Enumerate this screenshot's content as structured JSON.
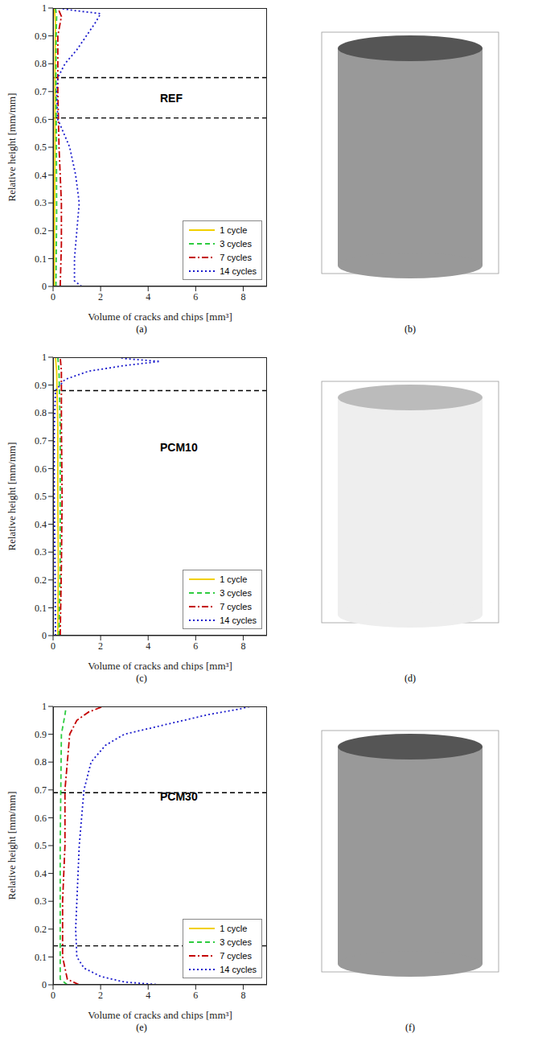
{
  "chart_data": [
    {
      "type": "line",
      "label": "(a)",
      "annotation": "REF",
      "x_label": "Volume of cracks and chips [mm³]",
      "y_label": "Relative height [mm/mm]",
      "xlim": [
        0,
        9
      ],
      "ylim": [
        0,
        1
      ],
      "xticks": [
        0,
        2,
        4,
        6,
        8
      ],
      "yticks": [
        0,
        0.1,
        0.2,
        0.3,
        0.4,
        0.5,
        0.6,
        0.7,
        0.8,
        0.9,
        1
      ],
      "legend": "lower right",
      "hlines": [
        0.75,
        0.605
      ],
      "series": [
        {
          "name": "1 cycle",
          "color": "#f2d000",
          "line_style": "solid",
          "x": [
            0.05,
            0.06,
            0.08,
            0.08,
            0.1,
            0.05
          ],
          "y": [
            0,
            0.25,
            0.5,
            0.75,
            0.95,
            1
          ]
        },
        {
          "name": "3 cycles",
          "color": "#2ecc40",
          "line_style": "dashed",
          "x": [
            0.12,
            0.15,
            0.14,
            0.12,
            0.13,
            0.15,
            0.1
          ],
          "y": [
            0,
            0.25,
            0.5,
            0.75,
            0.9,
            0.97,
            1
          ]
        },
        {
          "name": "7 cycles",
          "color": "#c40000",
          "line_style": "dashdot",
          "x": [
            0.3,
            0.35,
            0.35,
            0.25,
            0.2,
            0.2,
            0.35,
            0.2
          ],
          "y": [
            0,
            0.15,
            0.3,
            0.5,
            0.7,
            0.9,
            0.97,
            1
          ]
        },
        {
          "name": "14 cycles",
          "color": "#1a1acc",
          "line_style": "dotted",
          "x": [
            1.2,
            0.9,
            0.9,
            1.0,
            1.1,
            0.95,
            0.7,
            0.2,
            0.15,
            0.2,
            0.5,
            1.0,
            1.4,
            1.8,
            2.0,
            1.0,
            0.2
          ],
          "y": [
            0,
            0.02,
            0.1,
            0.2,
            0.3,
            0.4,
            0.5,
            0.6,
            0.7,
            0.75,
            0.8,
            0.85,
            0.9,
            0.95,
            0.98,
            0.99,
            1
          ]
        }
      ]
    },
    {
      "type": "line",
      "label": "(c)",
      "annotation": "PCM10",
      "x_label": "Volume of cracks and chips [mm³]",
      "y_label": "Relative height [mm/mm]",
      "xlim": [
        0,
        9
      ],
      "ylim": [
        0,
        1
      ],
      "xticks": [
        0,
        2,
        4,
        6,
        8
      ],
      "yticks": [
        0,
        0.1,
        0.2,
        0.3,
        0.4,
        0.5,
        0.6,
        0.7,
        0.8,
        0.9,
        1
      ],
      "legend": "lower right",
      "hlines": [
        0.88
      ],
      "series": [
        {
          "name": "1 cycle",
          "color": "#f2d000",
          "line_style": "solid",
          "x": [
            0.2,
            0.22,
            0.2,
            0.2,
            0.15,
            0.1
          ],
          "y": [
            0,
            0.25,
            0.5,
            0.75,
            0.95,
            1
          ]
        },
        {
          "name": "3 cycles",
          "color": "#2ecc40",
          "line_style": "dashed",
          "x": [
            0.25,
            0.3,
            0.3,
            0.3,
            0.25,
            0.2
          ],
          "y": [
            0,
            0.25,
            0.5,
            0.75,
            0.95,
            1
          ]
        },
        {
          "name": "7 cycles",
          "color": "#c40000",
          "line_style": "dashdot",
          "x": [
            0.3,
            0.35,
            0.38,
            0.35,
            0.35,
            0.3
          ],
          "y": [
            0,
            0.25,
            0.5,
            0.75,
            0.95,
            1
          ]
        },
        {
          "name": "14 cycles",
          "color": "#1a1acc",
          "line_style": "dotted",
          "x": [
            0.1,
            0.08,
            0.05,
            0.05,
            0.1,
            0.5,
            1.5,
            3.0,
            4.5,
            3.0,
            2.8
          ],
          "y": [
            0,
            0.25,
            0.5,
            0.75,
            0.88,
            0.92,
            0.95,
            0.97,
            0.985,
            0.995,
            1
          ]
        }
      ]
    },
    {
      "type": "line",
      "label": "(e)",
      "annotation": "PCM30",
      "x_label": "Volume of cracks and chips [mm³]",
      "y_label": "Relative height [mm/mm]",
      "xlim": [
        0,
        9
      ],
      "ylim": [
        0,
        1
      ],
      "xticks": [
        0,
        2,
        4,
        6,
        8
      ],
      "yticks": [
        0,
        0.1,
        0.2,
        0.3,
        0.4,
        0.5,
        0.6,
        0.7,
        0.8,
        0.9,
        1
      ],
      "legend": "lower right",
      "hlines": [
        0.69,
        0.14
      ],
      "series": [
        {
          "name": "1 cycle",
          "color": "#f2d000",
          "line_style": "solid",
          "x": [
            0,
            0
          ],
          "y": [
            0,
            1
          ]
        },
        {
          "name": "3 cycles",
          "color": "#2ecc40",
          "line_style": "dashed",
          "x": [
            0.6,
            0.3,
            0.3,
            0.3,
            0.35,
            0.5,
            0.55
          ],
          "y": [
            0,
            0.02,
            0.1,
            0.5,
            0.9,
            0.97,
            1
          ]
        },
        {
          "name": "7 cycles",
          "color": "#c40000",
          "line_style": "dashdot",
          "x": [
            1.1,
            0.6,
            0.4,
            0.4,
            0.5,
            0.5,
            0.7,
            1.0,
            1.5,
            2.1
          ],
          "y": [
            0,
            0.02,
            0.1,
            0.3,
            0.5,
            0.7,
            0.9,
            0.95,
            0.98,
            1
          ]
        },
        {
          "name": "14 cycles",
          "color": "#1a1acc",
          "line_style": "dotted",
          "x": [
            4.5,
            3.0,
            2.0,
            1.3,
            1.0,
            0.95,
            1.0,
            1.1,
            1.3,
            1.6,
            2.2,
            3.0,
            5.0,
            6.5,
            7.8,
            8.3
          ],
          "y": [
            0,
            0.01,
            0.03,
            0.06,
            0.1,
            0.2,
            0.3,
            0.5,
            0.7,
            0.8,
            0.86,
            0.9,
            0.94,
            0.97,
            0.99,
            1
          ]
        }
      ]
    }
  ],
  "images": [
    {
      "label": "(b)"
    },
    {
      "label": "(d)"
    },
    {
      "label": "(f)"
    }
  ]
}
